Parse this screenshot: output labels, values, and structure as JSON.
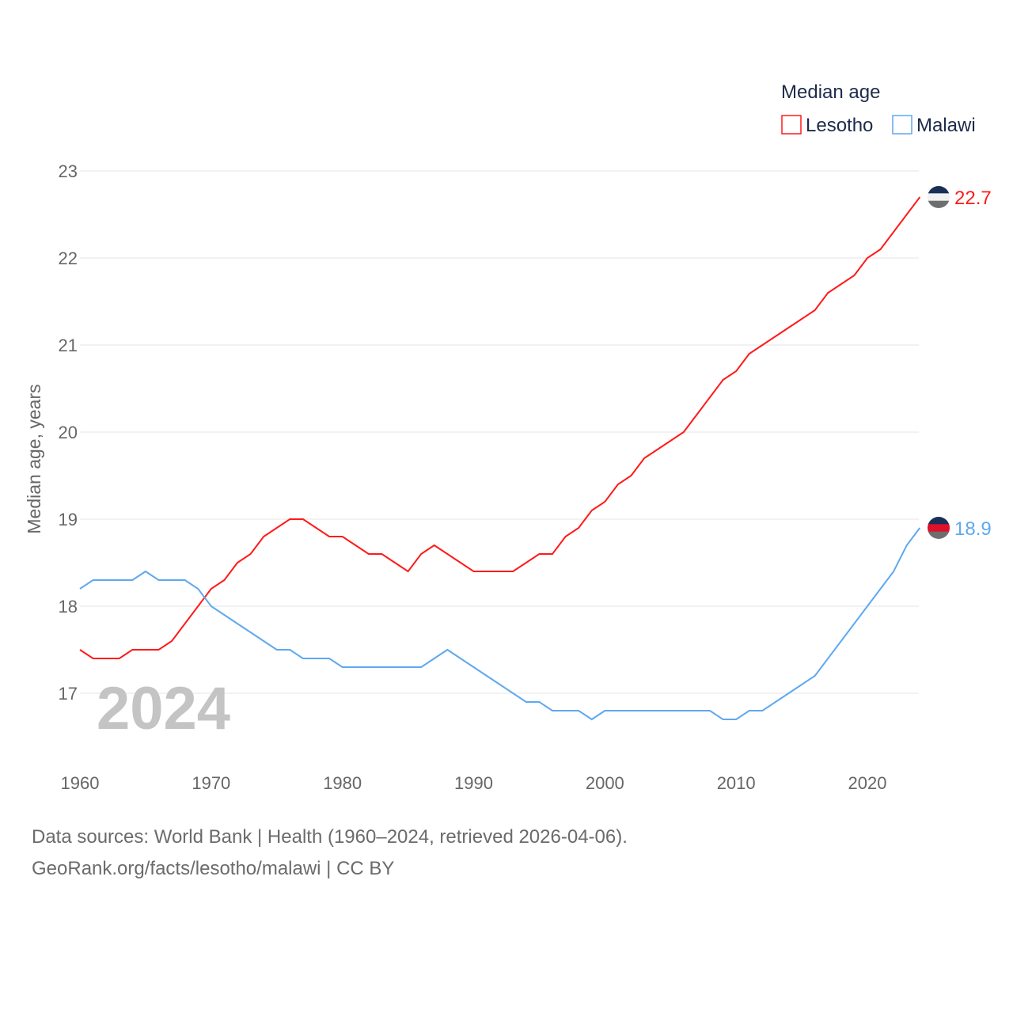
{
  "chart_data": {
    "type": "line",
    "title": "",
    "xlabel": "",
    "ylabel": "Median age, years",
    "xlim": [
      1960,
      2024
    ],
    "ylim": [
      16.4,
      23
    ],
    "yticks": [
      17,
      18,
      19,
      20,
      21,
      22,
      23
    ],
    "xticks": [
      1960,
      1970,
      1980,
      1990,
      2000,
      2010,
      2020
    ],
    "grid": true,
    "year_label": "2024",
    "legend": {
      "title": "Median age",
      "placement": "top-right"
    },
    "x": [
      1960,
      1961,
      1962,
      1963,
      1964,
      1965,
      1966,
      1967,
      1968,
      1969,
      1970,
      1971,
      1972,
      1973,
      1974,
      1975,
      1976,
      1977,
      1978,
      1979,
      1980,
      1981,
      1982,
      1983,
      1984,
      1985,
      1986,
      1987,
      1988,
      1989,
      1990,
      1991,
      1992,
      1993,
      1994,
      1995,
      1996,
      1997,
      1998,
      1999,
      2000,
      2001,
      2002,
      2003,
      2004,
      2005,
      2006,
      2007,
      2008,
      2009,
      2010,
      2011,
      2012,
      2013,
      2014,
      2015,
      2016,
      2017,
      2018,
      2019,
      2020,
      2021,
      2022,
      2023,
      2024
    ],
    "series": [
      {
        "name": "Lesotho",
        "color": "#ff1a1a",
        "end_label": "22.7",
        "flag": [
          "#1a2f55",
          "#f2f2f2",
          "#6e6e6e"
        ],
        "values": [
          17.5,
          17.4,
          17.4,
          17.4,
          17.5,
          17.5,
          17.5,
          17.6,
          17.8,
          18.0,
          18.2,
          18.3,
          18.5,
          18.6,
          18.8,
          18.9,
          19.0,
          19.0,
          18.9,
          18.8,
          18.8,
          18.7,
          18.6,
          18.6,
          18.5,
          18.4,
          18.6,
          18.7,
          18.6,
          18.5,
          18.4,
          18.4,
          18.4,
          18.4,
          18.5,
          18.6,
          18.6,
          18.8,
          18.9,
          19.1,
          19.2,
          19.4,
          19.5,
          19.7,
          19.8,
          19.9,
          20.0,
          20.2,
          20.4,
          20.6,
          20.7,
          20.9,
          21.0,
          21.1,
          21.2,
          21.3,
          21.4,
          21.6,
          21.7,
          21.8,
          22.0,
          22.1,
          22.3,
          22.5,
          22.7
        ]
      },
      {
        "name": "Malawi",
        "color": "#5fa8f0",
        "end_label": "18.9",
        "flag": [
          "#1a2f55",
          "#e0102a",
          "#6e6e6e"
        ],
        "values": [
          18.2,
          18.3,
          18.3,
          18.3,
          18.3,
          18.4,
          18.3,
          18.3,
          18.3,
          18.2,
          18.0,
          17.9,
          17.8,
          17.7,
          17.6,
          17.5,
          17.5,
          17.4,
          17.4,
          17.4,
          17.3,
          17.3,
          17.3,
          17.3,
          17.3,
          17.3,
          17.3,
          17.4,
          17.5,
          17.4,
          17.3,
          17.2,
          17.1,
          17.0,
          16.9,
          16.9,
          16.8,
          16.8,
          16.8,
          16.7,
          16.8,
          16.8,
          16.8,
          16.8,
          16.8,
          16.8,
          16.8,
          16.8,
          16.8,
          16.7,
          16.7,
          16.8,
          16.8,
          16.9,
          17.0,
          17.1,
          17.2,
          17.4,
          17.6,
          17.8,
          18.0,
          18.2,
          18.4,
          18.7,
          18.9
        ]
      }
    ]
  },
  "footer": {
    "line1": "Data sources: World Bank | Health (1960–2024, retrieved 2026-04-06).",
    "line2": "GeoRank.org/facts/lesotho/malawi | CC BY"
  }
}
